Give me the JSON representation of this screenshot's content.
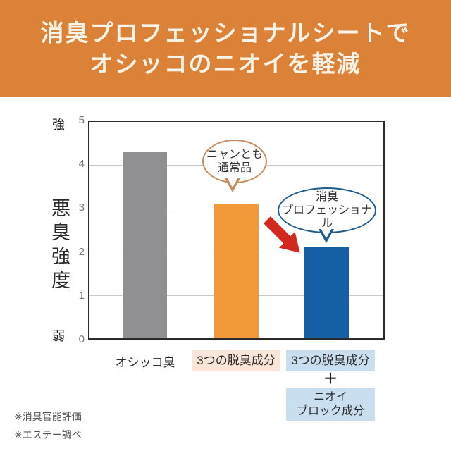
{
  "header": {
    "line1": "消臭プロフェッショナルシートで",
    "line2": "オシッコのニオイを軽減",
    "bg_color": "#DC8238"
  },
  "chart_data": {
    "type": "bar",
    "title": "",
    "ylabel": "悪臭強度",
    "xlabel": "",
    "ylim": [
      0,
      5
    ],
    "yticks": [
      "5",
      "4",
      "3",
      "2",
      "1",
      "0"
    ],
    "grid": true,
    "y_axis": {
      "top_label": "強",
      "bottom_label": "弱"
    },
    "categories": [
      "オシッコ臭",
      "3つの脱臭成分",
      "3つの脱臭成分＋ニオイブロック成分"
    ],
    "values": [
      4.3,
      3.1,
      2.1
    ],
    "bar_colors": [
      "#909092",
      "#F2993A",
      "#1560A5"
    ],
    "annotations": [
      {
        "target": "bar-2",
        "line1": "ニャンとも",
        "line2": "通常品",
        "border_color": "#C98C5E"
      },
      {
        "target": "bar-3",
        "line1": "消臭",
        "line2": "プロフェッショナル",
        "border_color": "#1D5C8C"
      }
    ],
    "arrow_color": "#D3281E"
  },
  "bar_labels": {
    "bar1": {
      "text": "オシッコ臭"
    },
    "bar2": {
      "text": "3つの脱臭成分",
      "bg_color": "#FAE5D8"
    },
    "bar3": {
      "top_text": "3つの脱臭成分",
      "plus": "＋",
      "bottom_line1": "ニオイ",
      "bottom_line2": "ブロック成分",
      "bg_color": "#C9DFEF"
    }
  },
  "footnotes": [
    "※消臭官能評価",
    "※エステー調べ"
  ]
}
